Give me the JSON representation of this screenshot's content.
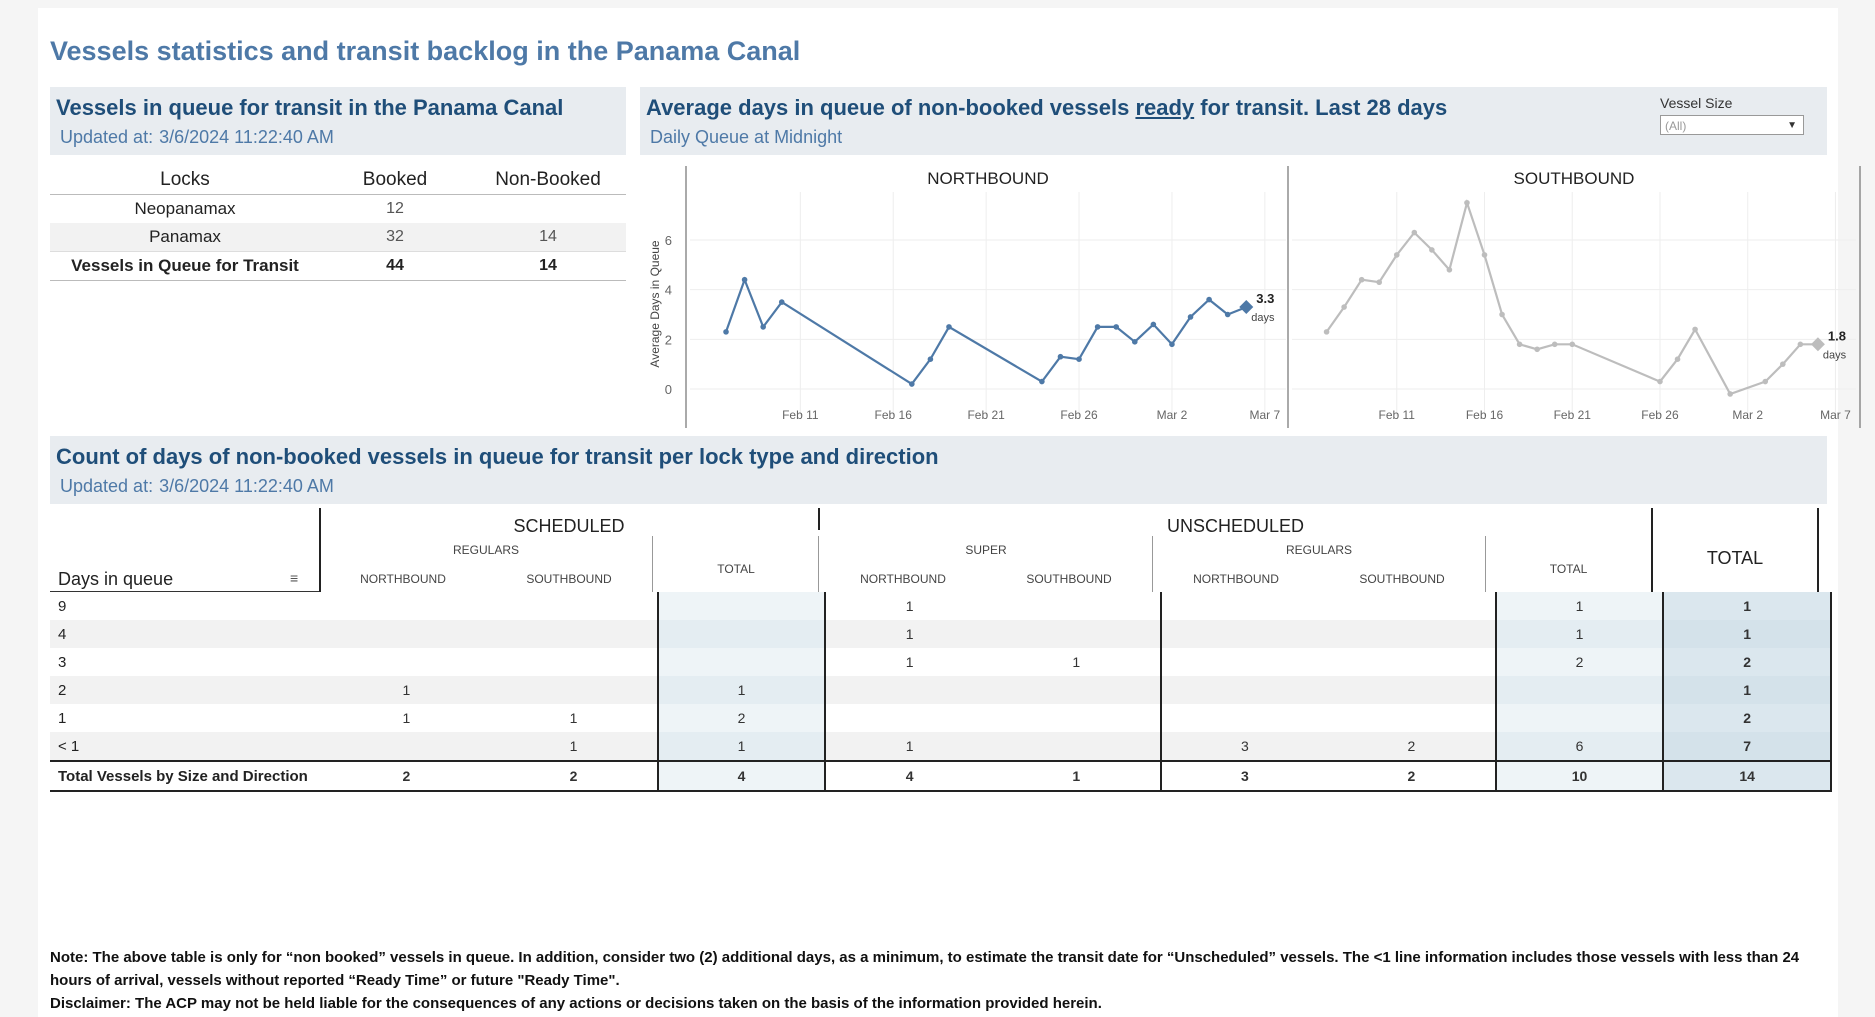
{
  "page_title": "Vessels statistics and transit backlog in the Panama Canal",
  "queue_panel": {
    "title": "Vessels in queue for transit in the Panama Canal",
    "updated_label": "Updated at:",
    "updated_value": "3/6/2024 11:22:40 AM",
    "columns": [
      "Locks",
      "Booked",
      "Non-Booked"
    ],
    "rows": [
      {
        "lock": "Neopanamax",
        "booked": "12",
        "non_booked": ""
      },
      {
        "lock": "Panamax",
        "booked": "32",
        "non_booked": "14"
      },
      {
        "lock": "Vessels in Queue for Transit",
        "booked": "44",
        "non_booked": "14"
      }
    ]
  },
  "avg_panel": {
    "title_part1": "Average days in queue of non-booked vessels ",
    "title_ready": "ready",
    "title_part2": " for transit. Last 28 days",
    "subtitle": "Daily Queue at Midnight",
    "filter_label": "Vessel Size",
    "filter_value": "(All)"
  },
  "chart_data": [
    {
      "type": "line",
      "title": "NORTHBOUND",
      "ylabel": "Average Days in Queue",
      "ylim": [
        0,
        7.5
      ],
      "yticks": [
        "0",
        "2",
        "4",
        "6"
      ],
      "xticks": [
        "Feb 11",
        "Feb 16",
        "Feb 21",
        "Feb 26",
        "Mar 2",
        "Mar 7"
      ],
      "x": [
        "Feb 7",
        "Feb 8",
        "Feb 9",
        "Feb 10",
        "Feb 17",
        "Feb 18",
        "Feb 19",
        "Feb 24",
        "Feb 25",
        "Feb 26",
        "Feb 27",
        "Feb 28",
        "Feb 29",
        "Mar 1",
        "Mar 2",
        "Mar 3",
        "Mar 4",
        "Mar 5",
        "Mar 6"
      ],
      "values": [
        2.3,
        4.4,
        2.5,
        3.5,
        0.2,
        1.2,
        2.5,
        0.3,
        1.3,
        1.2,
        2.5,
        2.5,
        1.9,
        2.6,
        1.8,
        2.9,
        3.6,
        3.0,
        3.3
      ],
      "series_color": "#4e79a7",
      "last_label_value": "3.3",
      "last_label_unit": "days"
    },
    {
      "type": "line",
      "title": "SOUTHBOUND",
      "ylim": [
        0,
        7.5
      ],
      "xticks": [
        "Feb 11",
        "Feb 16",
        "Feb 21",
        "Feb 26",
        "Mar 2",
        "Mar 7"
      ],
      "x": [
        "Feb 7",
        "Feb 8",
        "Feb 9",
        "Feb 10",
        "Feb 11",
        "Feb 12",
        "Feb 13",
        "Feb 14",
        "Feb 15",
        "Feb 16",
        "Feb 17",
        "Feb 18",
        "Feb 19",
        "Feb 20",
        "Feb 21",
        "Feb 26",
        "Feb 27",
        "Feb 28",
        "Mar 1",
        "Mar 3",
        "Mar 4",
        "Mar 5",
        "Mar 6"
      ],
      "values": [
        2.3,
        3.3,
        4.4,
        4.3,
        5.4,
        6.3,
        5.6,
        4.8,
        7.5,
        5.4,
        3.0,
        1.8,
        1.6,
        1.8,
        1.8,
        0.3,
        1.2,
        2.4,
        -0.2,
        0.3,
        1.0,
        1.8,
        1.8
      ],
      "series_color": "#bdbdbd",
      "last_label_value": "1.8",
      "last_label_unit": "days"
    }
  ],
  "count_panel": {
    "title": "Count of days of non-booked vessels in queue for transit per lock type and direction",
    "updated_label": "Updated at:",
    "updated_value": "3/6/2024 11:22:40 AM",
    "row_header": "Days in queue",
    "group_scheduled": "SCHEDULED",
    "group_unscheduled": "UNSCHEDULED",
    "sub_regulars": "REGULARS",
    "sub_super": "SUPER",
    "northbound": "NORTHBOUND",
    "southbound": "SOUTHBOUND",
    "total_small": "TOTAL",
    "total_big": "TOTAL",
    "rows": [
      {
        "label": "9",
        "cells": [
          "",
          "",
          "",
          "1",
          "",
          "",
          "",
          "1",
          "1"
        ]
      },
      {
        "label": "4",
        "cells": [
          "",
          "",
          "",
          "1",
          "",
          "",
          "",
          "1",
          "1"
        ]
      },
      {
        "label": "3",
        "cells": [
          "",
          "",
          "",
          "1",
          "1",
          "",
          "",
          "2",
          "2"
        ]
      },
      {
        "label": "2",
        "cells": [
          "1",
          "",
          "1",
          "",
          "",
          "",
          "",
          "",
          "1"
        ]
      },
      {
        "label": "1",
        "cells": [
          "1",
          "1",
          "2",
          "",
          "",
          "",
          "",
          "",
          "2"
        ]
      },
      {
        "label": "< 1",
        "cells": [
          "",
          "1",
          "1",
          "1",
          "",
          "3",
          "2",
          "6",
          "7"
        ]
      }
    ],
    "total_row": {
      "label": "Total Vessels by Size and Direction",
      "cells": [
        "2",
        "2",
        "4",
        "4",
        "1",
        "3",
        "2",
        "10",
        "14"
      ]
    }
  },
  "note_line1": "Note:  The above table is only for “non booked” vessels in queue. In addition, consider two (2) additional days, as a minimum, to estimate the transit date for “Unscheduled” vessels.  The <1 line information includes those vessels with less than 24 hours of arrival, vessels without reported “Ready Time” or future \"Ready Time\".",
  "note_line2": "Disclaimer: The ACP may not be held liable for the consequences of any actions or decisions taken on the basis of the information provided herein."
}
